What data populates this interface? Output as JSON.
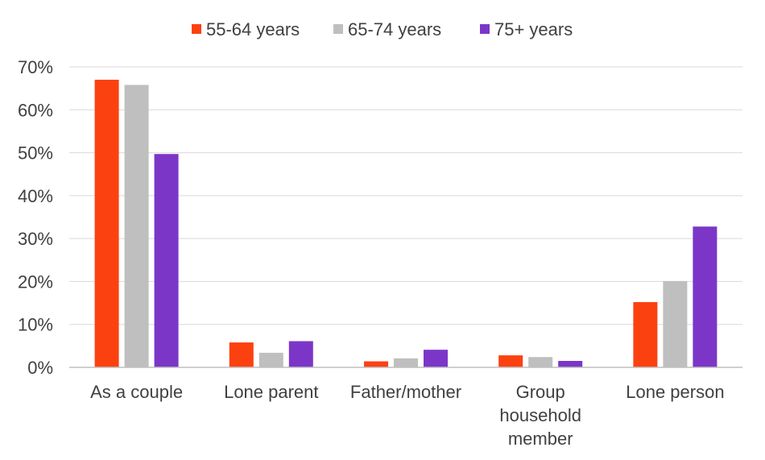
{
  "chart_data": {
    "type": "bar",
    "title": "",
    "xlabel": "",
    "ylabel": "",
    "categories": [
      [
        "As a couple"
      ],
      [
        "Lone parent"
      ],
      [
        "Father/mother"
      ],
      [
        "Group",
        "household",
        "member"
      ],
      [
        "Lone person"
      ]
    ],
    "series": [
      {
        "name": "55-64 years",
        "color": "#fc4111",
        "values": [
          67,
          5.8,
          1.4,
          2.8,
          15.2
        ]
      },
      {
        "name": "65-74 years",
        "color": "#bfbfbf",
        "values": [
          65.8,
          3.4,
          2.1,
          2.4,
          20.1
        ]
      },
      {
        "name": "75+ years",
        "color": "#7b36c8",
        "values": [
          49.7,
          6.1,
          4.1,
          1.5,
          32.8
        ]
      }
    ],
    "ylim": [
      0,
      70
    ],
    "yticks": [
      {
        "value": 0,
        "label": "0%"
      },
      {
        "value": 10,
        "label": "10%"
      },
      {
        "value": 20,
        "label": "20%"
      },
      {
        "value": 30,
        "label": "30%"
      },
      {
        "value": 40,
        "label": "40%"
      },
      {
        "value": 50,
        "label": "50%"
      },
      {
        "value": 60,
        "label": "60%"
      },
      {
        "value": 70,
        "label": "70%"
      }
    ],
    "grid": true,
    "legend_position": "top-center"
  }
}
